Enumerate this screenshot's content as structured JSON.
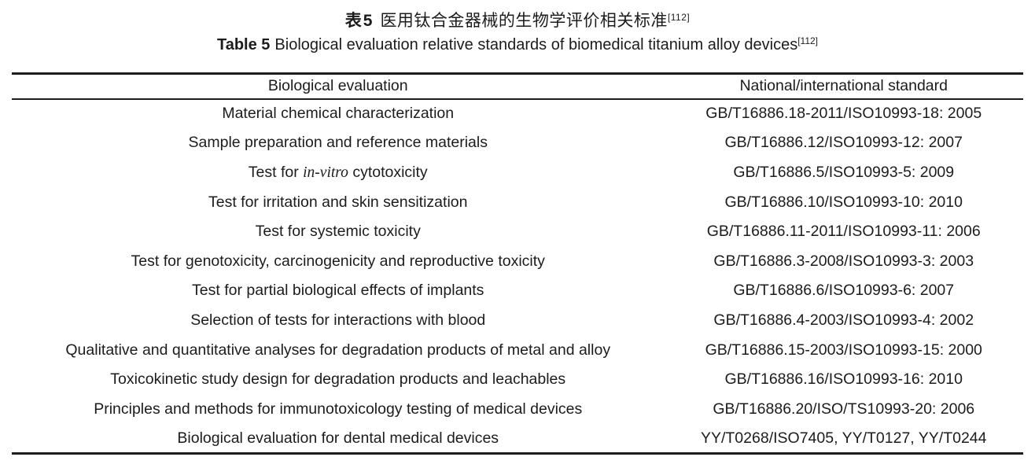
{
  "caption": {
    "zh_label": "表5",
    "zh_text": "医用钛合金器械的生物学评价相关标准",
    "zh_ref": "[112]",
    "en_label": "Table 5",
    "en_text": "Biological evaluation relative standards of biomedical titanium alloy devices",
    "en_ref": "[112]"
  },
  "table": {
    "columns": [
      "Biological evaluation",
      "National/international standard"
    ],
    "italic_phrase": "in-vitro",
    "rows": [
      {
        "evaluation": "Material chemical characterization",
        "standard": "GB/T16886.18-2011/ISO10993-18: 2005"
      },
      {
        "evaluation": "Sample preparation and reference materials",
        "standard": "GB/T16886.12/ISO10993-12: 2007"
      },
      {
        "evaluation": "Test for in-vitro cytotoxicity",
        "standard": "GB/T16886.5/ISO10993-5: 2009"
      },
      {
        "evaluation": "Test for irritation and skin sensitization",
        "standard": "GB/T16886.10/ISO10993-10: 2010"
      },
      {
        "evaluation": "Test for systemic toxicity",
        "standard": "GB/T16886.11-2011/ISO10993-11: 2006"
      },
      {
        "evaluation": "Test for genotoxicity, carcinogenicity and reproductive toxicity",
        "standard": "GB/T16886.3-2008/ISO10993-3: 2003"
      },
      {
        "evaluation": "Test for partial biological effects of implants",
        "standard": "GB/T16886.6/ISO10993-6: 2007"
      },
      {
        "evaluation": "Selection of tests for interactions with blood",
        "standard": "GB/T16886.4-2003/ISO10993-4: 2002"
      },
      {
        "evaluation": "Qualitative and quantitative analyses for degradation products of metal and alloy",
        "standard": "GB/T16886.15-2003/ISO10993-15: 2000"
      },
      {
        "evaluation": "Toxicokinetic study design for degradation products and leachables",
        "standard": "GB/T16886.16/ISO10993-16: 2010"
      },
      {
        "evaluation": "Principles and methods for immunotoxicology testing of medical devices",
        "standard": "GB/T16886.20/ISO/TS10993-20: 2006"
      },
      {
        "evaluation": "Biological evaluation for dental medical devices",
        "standard": "YY/T0268/ISO7405, YY/T0127, YY/T0244"
      }
    ]
  }
}
